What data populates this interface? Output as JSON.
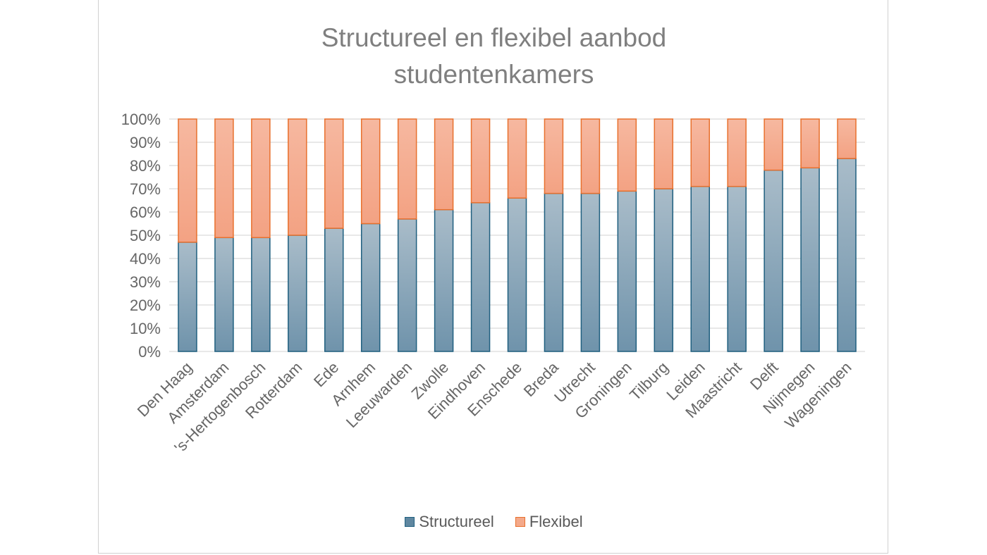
{
  "chart_data": {
    "type": "bar",
    "stacked": "percent",
    "title": "Structureel en flexibel aanbod studentenkamers",
    "title_lines": [
      "Structureel en flexibel aanbod",
      "studentenkamers"
    ],
    "categories": [
      "Den Haag",
      "Amsterdam",
      "'s-Hertogenbosch",
      "Rotterdam",
      "Ede",
      "Arnhem",
      "Leeuwarden",
      "Zwolle",
      "Eindhoven",
      "Enschede",
      "Breda",
      "Utrecht",
      "Groningen",
      "Tilburg",
      "Leiden",
      "Maastricht",
      "Delft",
      "Nijmegen",
      "Wageningen"
    ],
    "series": [
      {
        "name": "Structureel",
        "color": "#5f87a0",
        "border": "#1f5f7f",
        "values": [
          47,
          49,
          49,
          50,
          53,
          55,
          57,
          61,
          64,
          66,
          68,
          68,
          69,
          70,
          71,
          71,
          78,
          79,
          83
        ]
      },
      {
        "name": "Flexibel",
        "color": "#f4a98a",
        "border": "#e8702d",
        "values": [
          53,
          51,
          51,
          50,
          47,
          45,
          43,
          39,
          36,
          34,
          32,
          32,
          31,
          30,
          29,
          29,
          22,
          21,
          17
        ]
      }
    ],
    "yticks": [
      "0%",
      "10%",
      "20%",
      "30%",
      "40%",
      "50%",
      "60%",
      "70%",
      "80%",
      "90%",
      "100%"
    ],
    "ylim": [
      0,
      100
    ],
    "xlabel": "",
    "ylabel": "",
    "grid": true,
    "legend_position": "bottom"
  }
}
